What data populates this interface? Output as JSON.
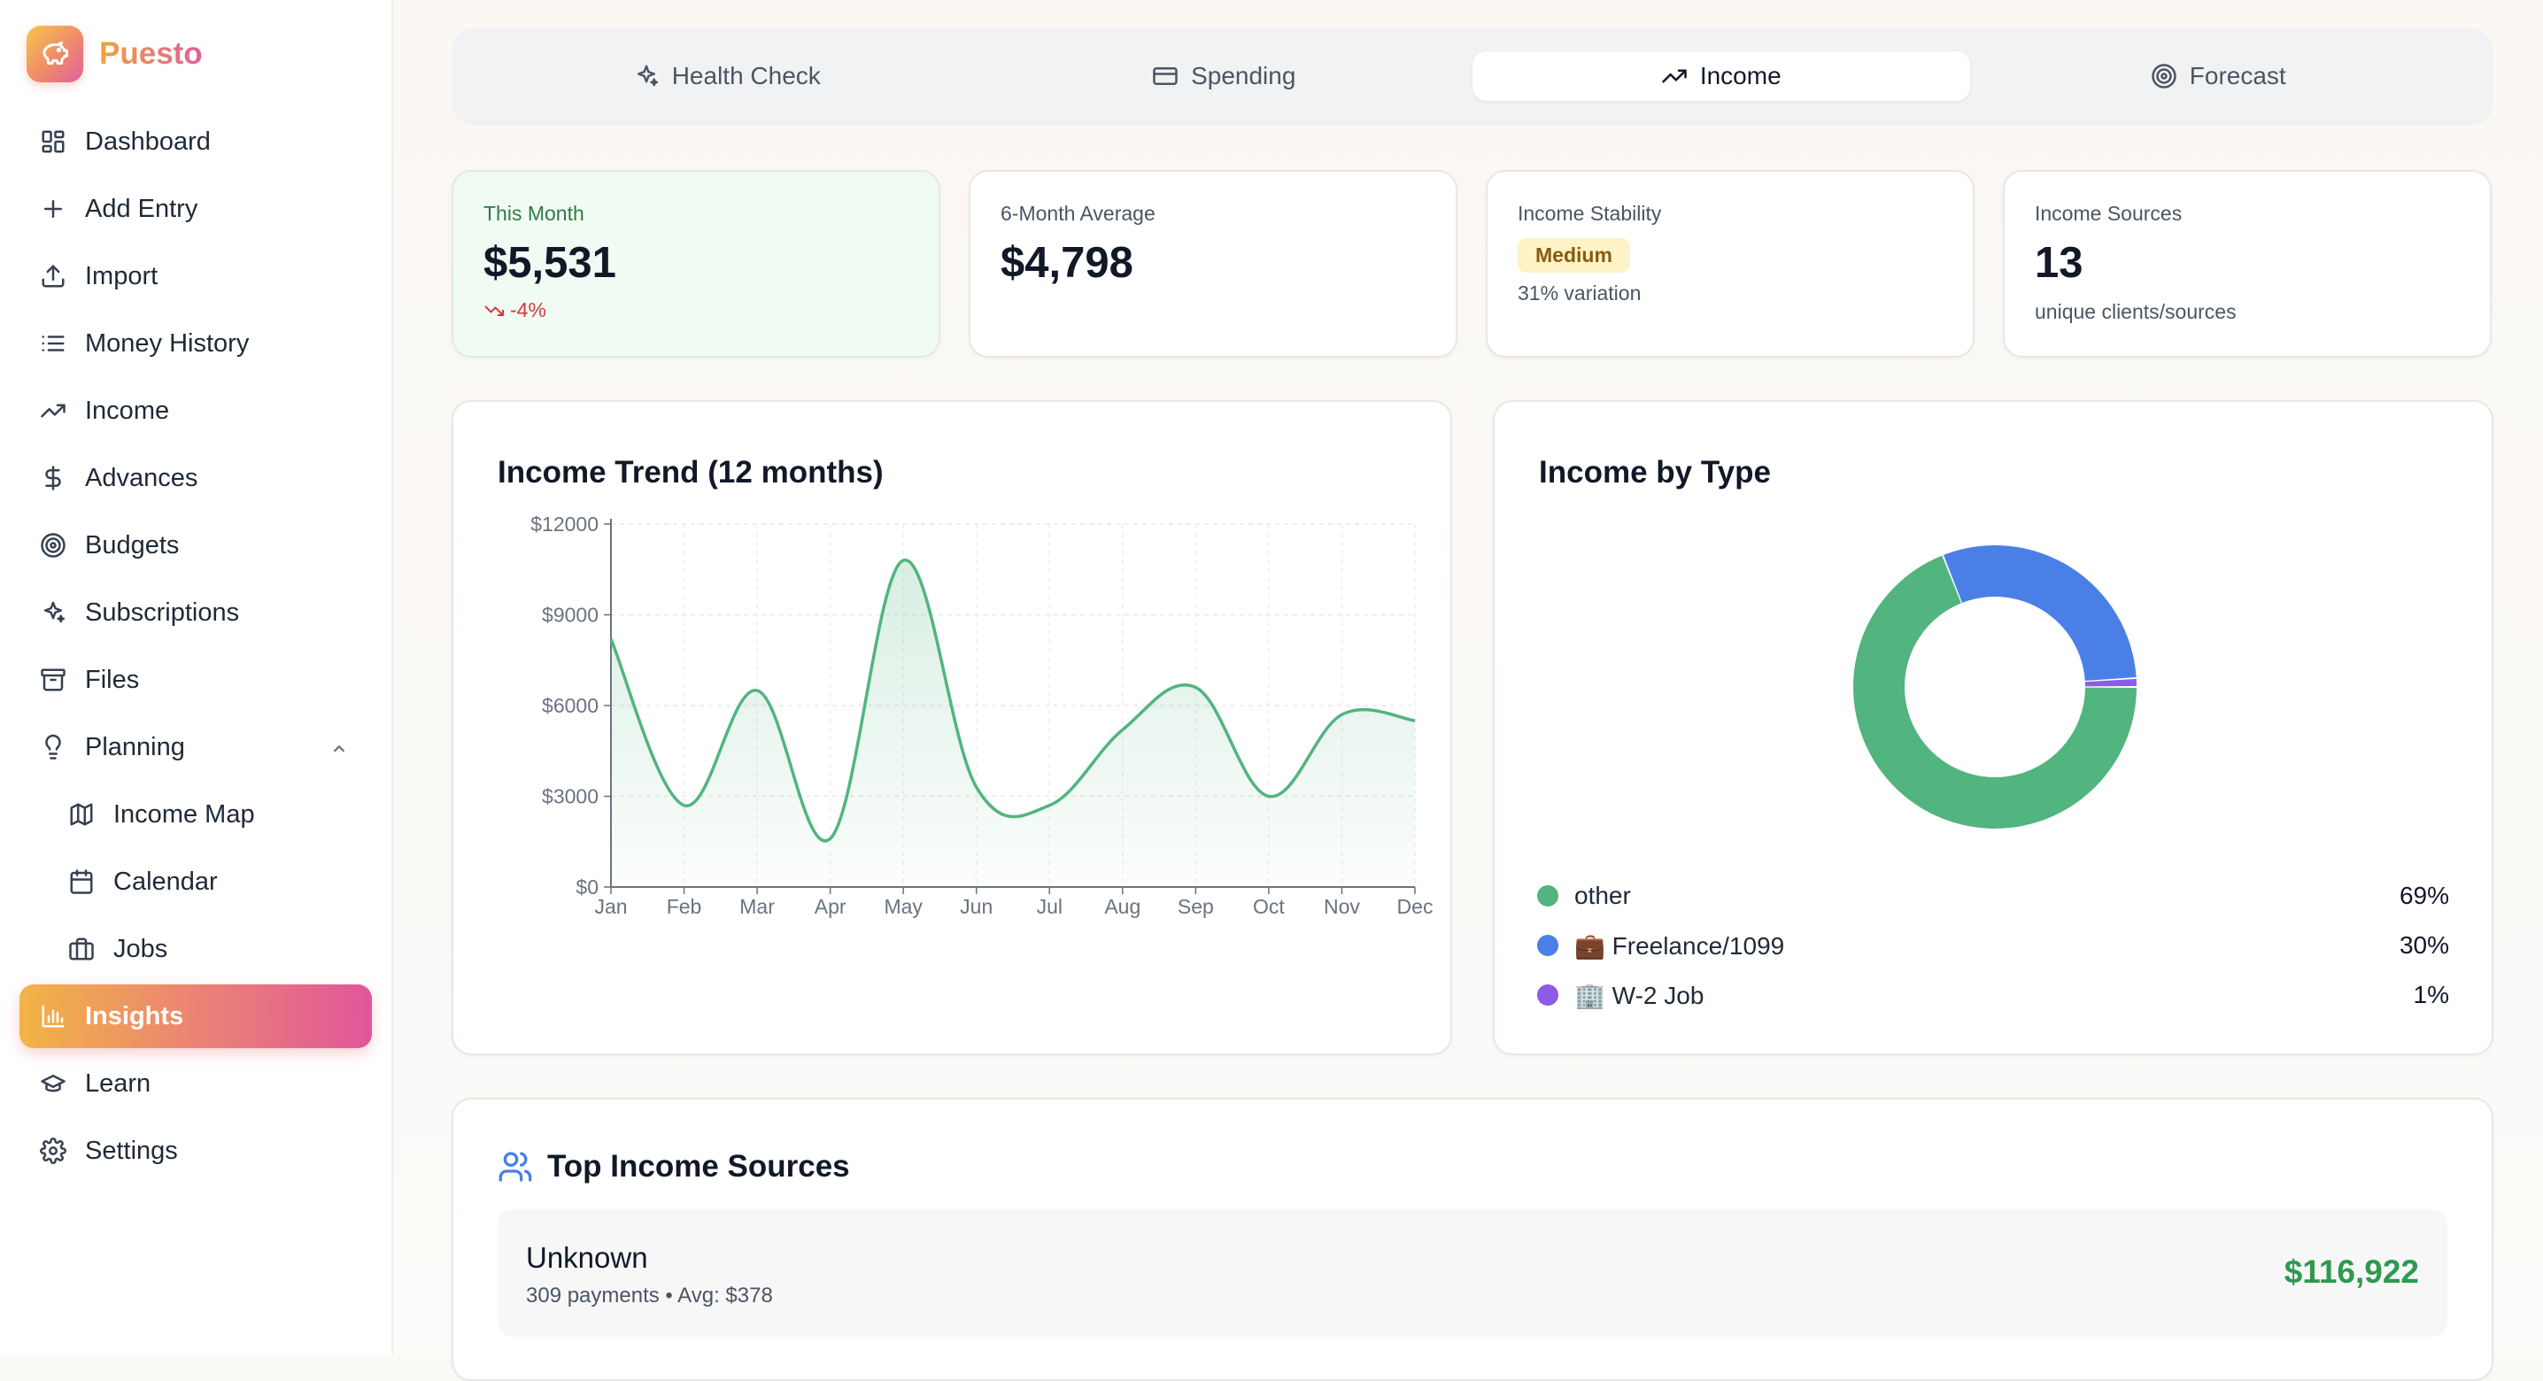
{
  "app": {
    "name": "Puesto"
  },
  "sidebar": {
    "items": [
      {
        "label": "Dashboard",
        "icon": "dashboard-icon"
      },
      {
        "label": "Add Entry",
        "icon": "plus-icon"
      },
      {
        "label": "Import",
        "icon": "upload-icon"
      },
      {
        "label": "Money History",
        "icon": "list-icon"
      },
      {
        "label": "Income",
        "icon": "trending-up-icon"
      },
      {
        "label": "Advances",
        "icon": "dollar-icon"
      },
      {
        "label": "Budgets",
        "icon": "target-icon"
      },
      {
        "label": "Subscriptions",
        "icon": "sparkles-icon"
      },
      {
        "label": "Files",
        "icon": "archive-icon"
      },
      {
        "label": "Planning",
        "icon": "lightbulb-icon",
        "expanded": true
      },
      {
        "label": "Income Map",
        "icon": "map-icon"
      },
      {
        "label": "Calendar",
        "icon": "calendar-icon"
      },
      {
        "label": "Jobs",
        "icon": "briefcase-icon"
      },
      {
        "label": "Insights",
        "icon": "bar-chart-icon",
        "active": true
      },
      {
        "label": "Learn",
        "icon": "graduation-cap-icon"
      },
      {
        "label": "Settings",
        "icon": "gear-icon"
      }
    ]
  },
  "tabs": [
    {
      "label": "Health Check",
      "icon": "sparkles-icon"
    },
    {
      "label": "Spending",
      "icon": "credit-card-icon"
    },
    {
      "label": "Income",
      "icon": "trending-up-icon",
      "active": true
    },
    {
      "label": "Forecast",
      "icon": "target-icon"
    }
  ],
  "stats": {
    "this_month": {
      "label": "This Month",
      "value": "$5,531",
      "delta": "-4%"
    },
    "six_month": {
      "label": "6-Month Average",
      "value": "$4,798"
    },
    "stability": {
      "label": "Income Stability",
      "badge": "Medium",
      "sub": "31% variation"
    },
    "sources": {
      "label": "Income Sources",
      "value": "13",
      "sub": "unique clients/sources"
    }
  },
  "trend": {
    "title": "Income Trend (12 months)"
  },
  "by_type": {
    "title": "Income by Type",
    "legend": [
      {
        "name": "other",
        "pct": "69%",
        "color": "#52b47f"
      },
      {
        "name": "💼 Freelance/1099",
        "pct": "30%",
        "color": "#4a7fe6"
      },
      {
        "name": "🏢 W-2 Job",
        "pct": "1%",
        "color": "#8b5ce6"
      }
    ]
  },
  "top_sources": {
    "title": "Top Income Sources",
    "rows": [
      {
        "name": "Unknown",
        "meta": "309 payments • Avg: $378",
        "amount": "$116,922"
      }
    ]
  },
  "chart_data": [
    {
      "type": "area",
      "title": "Income Trend (12 months)",
      "categories": [
        "Jan",
        "Feb",
        "Mar",
        "Apr",
        "May",
        "Jun",
        "Jul",
        "Aug",
        "Sep",
        "Oct",
        "Nov",
        "Dec"
      ],
      "values": [
        8200,
        2700,
        6500,
        1600,
        10800,
        3300,
        2700,
        5200,
        6600,
        3000,
        5700,
        5500
      ],
      "yticks": [
        "$0",
        "$3000",
        "$6000",
        "$9000",
        "$12000"
      ],
      "ylim": [
        0,
        12000
      ],
      "color": "#52b47f",
      "grid": true
    },
    {
      "type": "pie",
      "title": "Income by Type",
      "donut": true,
      "labels": [
        "other",
        "💼 Freelance/1099",
        "🏢 W-2 Job"
      ],
      "values": [
        69,
        30,
        1
      ],
      "colors": [
        "#52b47f",
        "#4a7fe6",
        "#8b5ce6"
      ]
    }
  ]
}
